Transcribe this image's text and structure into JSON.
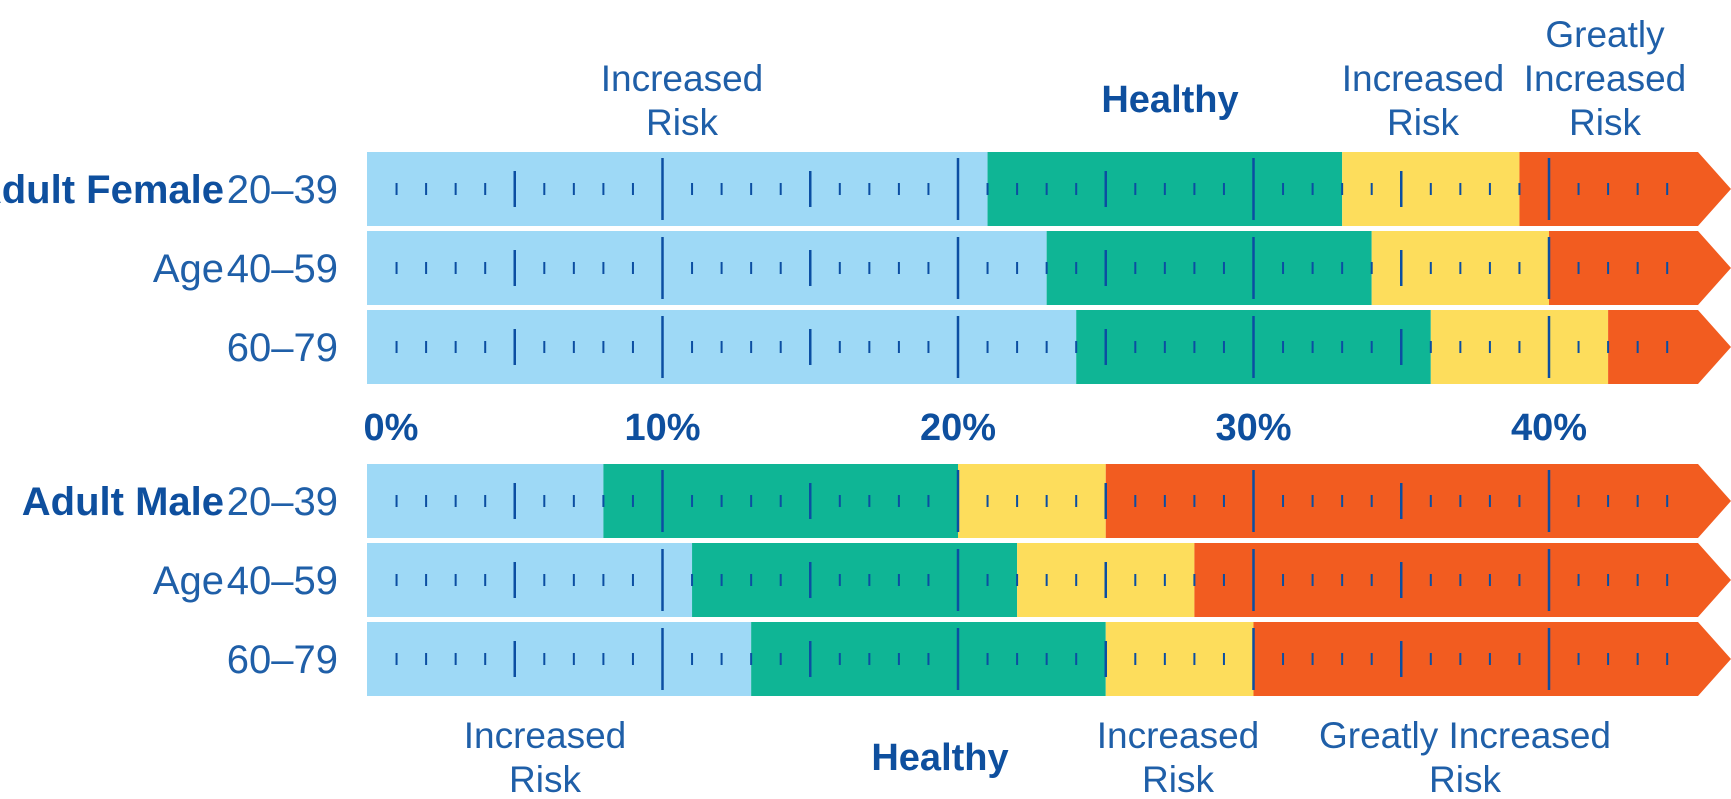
{
  "chart_data": {
    "type": "bar",
    "x_ticks": [
      "0%",
      "10%",
      "20%",
      "30%",
      "40%"
    ],
    "xlim": [
      0,
      45
    ],
    "colors": {
      "low": "#9ed9f6",
      "healthy": "#0fb595",
      "increased": "#fddd5c",
      "greatly_increased": "#f25c20",
      "tick": "#0b4ea2",
      "text": "#1f5fa8"
    },
    "groups": [
      {
        "label": "Adult Female",
        "age_prefix": "Age",
        "rows": [
          {
            "label": "20–39",
            "low_end": 21,
            "healthy_end": 33,
            "increased_end": 39
          },
          {
            "label": "40–59",
            "low_end": 23,
            "healthy_end": 34,
            "increased_end": 40
          },
          {
            "label": "60–79",
            "low_end": 24,
            "healthy_end": 36,
            "increased_end": 42
          }
        ],
        "zone_labels": {
          "low": [
            "Increased",
            "Risk"
          ],
          "healthy": [
            "Healthy"
          ],
          "increased": [
            "Increased",
            "Risk"
          ],
          "greatly_increased": [
            "Greatly",
            "Increased",
            "Risk"
          ]
        }
      },
      {
        "label": "Adult Male",
        "age_prefix": "Age",
        "rows": [
          {
            "label": "20–39",
            "low_end": 8,
            "healthy_end": 20,
            "increased_end": 25
          },
          {
            "label": "40–59",
            "low_end": 11,
            "healthy_end": 22,
            "increased_end": 28
          },
          {
            "label": "60–79",
            "low_end": 13,
            "healthy_end": 25,
            "increased_end": 30
          }
        ],
        "zone_labels": {
          "low": [
            "Increased",
            "Risk"
          ],
          "healthy": [
            "Healthy"
          ],
          "increased": [
            "Increased",
            "Risk"
          ],
          "greatly_increased": [
            "Greatly Increased",
            "Risk"
          ]
        }
      }
    ]
  }
}
